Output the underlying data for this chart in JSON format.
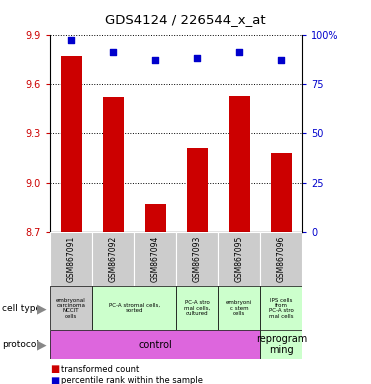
{
  "title": "GDS4124 / 226544_x_at",
  "samples": [
    "GSM867091",
    "GSM867092",
    "GSM867094",
    "GSM867093",
    "GSM867095",
    "GSM867096"
  ],
  "bar_values": [
    9.77,
    9.52,
    8.87,
    9.21,
    9.53,
    9.18
  ],
  "dot_values": [
    97,
    91,
    87,
    88,
    91,
    87
  ],
  "ylim_left": [
    8.7,
    9.9
  ],
  "ylim_right": [
    0,
    100
  ],
  "yticks_left": [
    8.7,
    9.0,
    9.3,
    9.6,
    9.9
  ],
  "yticks_right": [
    0,
    25,
    50,
    75,
    100
  ],
  "bar_color": "#cc0000",
  "dot_color": "#0000cc",
  "cell_groups": [
    {
      "indices": [
        0,
        0
      ],
      "label": "embryonal\ncarcinoma\nNCCIT\ncells",
      "color": "#cccccc"
    },
    {
      "indices": [
        1,
        2
      ],
      "label": "PC-A stromal cells,\nsorted",
      "color": "#ccffcc"
    },
    {
      "indices": [
        3,
        3
      ],
      "label": "PC-A stro\nmal cells,\ncultured",
      "color": "#ccffcc"
    },
    {
      "indices": [
        4,
        4
      ],
      "label": "embryoni\nc stem\ncells",
      "color": "#ccffcc"
    },
    {
      "indices": [
        5,
        5
      ],
      "label": "IPS cells\nfrom\nPC-A stro\nmal cells",
      "color": "#ccffcc"
    }
  ],
  "protocol_groups": [
    {
      "indices": [
        0,
        4
      ],
      "label": "control",
      "color": "#dd66dd"
    },
    {
      "indices": [
        5,
        5
      ],
      "label": "reprogram\nming",
      "color": "#ccffcc"
    }
  ],
  "bg_color": "#ffffff",
  "gray_box_color": "#cccccc",
  "legend_items": [
    {
      "color": "#cc0000",
      "label": "transformed count"
    },
    {
      "color": "#0000cc",
      "label": "percentile rank within the sample"
    }
  ]
}
